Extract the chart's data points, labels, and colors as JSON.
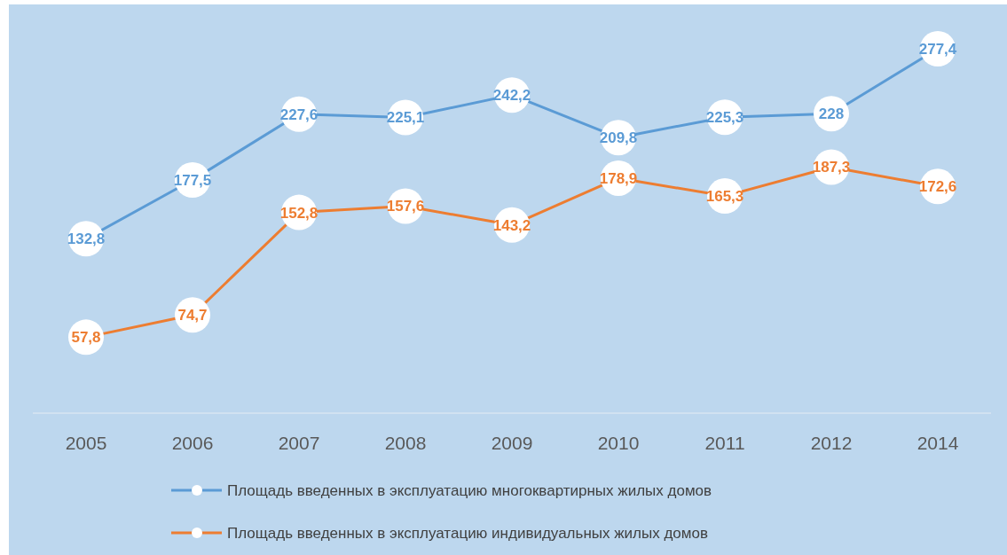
{
  "chart_data": {
    "type": "line",
    "categories": [
      "2005",
      "2006",
      "2007",
      "2008",
      "2009",
      "2010",
      "2011",
      "2012",
      "2014"
    ],
    "marker": "circle",
    "legend": "bottom",
    "tick_labels": "x",
    "series": [
      {
        "name": "Площадь введенных в эксплуатацию многоквартирных жилых домов",
        "color": "#5b9bd5",
        "values": [
          132.8,
          177.5,
          227.6,
          225.1,
          242.2,
          209.8,
          225.3,
          228,
          277.4
        ],
        "value_labels": [
          "132,8",
          "177,5",
          "227,6",
          "225,1",
          "242,2",
          "209,8",
          "225,3",
          "228",
          "277,4"
        ]
      },
      {
        "name": "Площадь введенных в эксплуатацию индивидуальных жилых домов",
        "color": "#ed7d31",
        "values": [
          57.8,
          74.7,
          152.8,
          157.6,
          143.2,
          178.9,
          165.3,
          187.3,
          172.6
        ],
        "value_labels": [
          "57,8",
          "74,7",
          "152,8",
          "157,6",
          "143,2",
          "178,9",
          "165,3",
          "187,3",
          "172,6"
        ]
      }
    ]
  }
}
